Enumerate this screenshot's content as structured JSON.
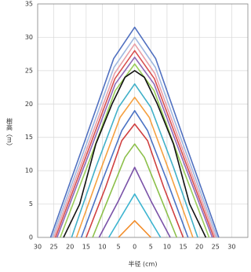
{
  "chart_data": {
    "type": "line",
    "y_label": "樹高（m）",
    "x_label": "半径 (cm)",
    "xlim": [
      -30,
      35
    ],
    "ylim": [
      0,
      35
    ],
    "xticks": [
      {
        "value": -30,
        "label": "30"
      },
      {
        "value": -25,
        "label": "25"
      },
      {
        "value": -20,
        "label": "20"
      },
      {
        "value": -15,
        "label": "15"
      },
      {
        "value": -10,
        "label": "10"
      },
      {
        "value": -5,
        "label": "5"
      },
      0,
      5,
      10,
      15,
      20,
      25,
      30
    ],
    "yticks": [
      0,
      5,
      10,
      15,
      20,
      25,
      30,
      35
    ],
    "grid": true,
    "series": [
      {
        "color": "#f28c28",
        "x": [
          -5,
          0,
          5
        ],
        "values": [
          0,
          2.5,
          0
        ]
      },
      {
        "color": "#3cb4d0",
        "x": [
          -8,
          0,
          8
        ],
        "values": [
          0,
          6.5,
          0
        ]
      },
      {
        "color": "#7a52a8",
        "x": [
          -11,
          -5,
          0,
          5,
          11
        ],
        "values": [
          0,
          5.5,
          10.5,
          5.5,
          0
        ]
      },
      {
        "color": "#8cc04a",
        "x": [
          -13,
          -8,
          -3,
          0,
          3,
          8,
          13
        ],
        "values": [
          0,
          6,
          12,
          14,
          12,
          6,
          0
        ]
      },
      {
        "color": "#d04040",
        "x": [
          -15,
          -9,
          -4,
          0,
          4,
          9,
          15
        ],
        "values": [
          0,
          7.5,
          14.5,
          17,
          14.5,
          7.5,
          0
        ]
      },
      {
        "color": "#4a72c4",
        "x": [
          -16.5,
          -10,
          -4,
          0,
          4,
          10,
          16.5
        ],
        "values": [
          0,
          8.5,
          16,
          19,
          16,
          8.5,
          0
        ]
      },
      {
        "color": "#f5a040",
        "x": [
          -18,
          -11,
          -4.5,
          0,
          4.5,
          11,
          18
        ],
        "values": [
          0,
          9.5,
          18,
          21,
          18,
          9.5,
          0
        ]
      },
      {
        "color": "#40b0c8",
        "x": [
          -19.5,
          -12,
          -5,
          0,
          5,
          12,
          19.5
        ],
        "values": [
          0,
          10.5,
          19.5,
          23,
          19.5,
          10.5,
          0
        ]
      },
      {
        "color": "#9acd5a",
        "x": [
          -23,
          -14,
          -6,
          0,
          6,
          14,
          23
        ],
        "values": [
          0,
          11.5,
          22,
          26,
          22,
          11.5,
          0
        ]
      },
      {
        "color": "#8e6ab8",
        "x": [
          -24,
          -14.4,
          -6,
          0,
          6,
          14.4,
          24
        ],
        "values": [
          0,
          12.2,
          23,
          27,
          23,
          12.2,
          0
        ]
      },
      {
        "color": "#d85050",
        "x": [
          -24.5,
          -14.7,
          -6.1,
          0,
          6.1,
          14.7,
          24.5
        ],
        "values": [
          0,
          12.6,
          23.8,
          28,
          23.8,
          12.6,
          0
        ]
      },
      {
        "color": "#e8a0a8",
        "x": [
          -25,
          -15,
          -6.2,
          0,
          6.2,
          15,
          25
        ],
        "values": [
          0,
          13,
          24.6,
          29,
          24.6,
          13,
          0
        ]
      },
      {
        "color": "#a0b8e0",
        "x": [
          -25.5,
          -15.3,
          -6.4,
          0,
          6.4,
          15.3,
          25.5
        ],
        "values": [
          0,
          13.5,
          25.5,
          30,
          25.5,
          13.5,
          0
        ]
      },
      {
        "color": "#5070c0",
        "x": [
          -26,
          -15.6,
          -6.5,
          0,
          6.5,
          15.6,
          26
        ],
        "values": [
          0,
          14.2,
          26.8,
          31.5,
          26.8,
          14.2,
          0
        ]
      },
      {
        "color": "#111111",
        "x": [
          -22,
          -17,
          -12,
          -7,
          -3,
          0,
          3,
          7,
          12,
          17,
          22
        ],
        "values": [
          0,
          5,
          14,
          20,
          24,
          25,
          24,
          20,
          14,
          5,
          0
        ]
      }
    ]
  }
}
